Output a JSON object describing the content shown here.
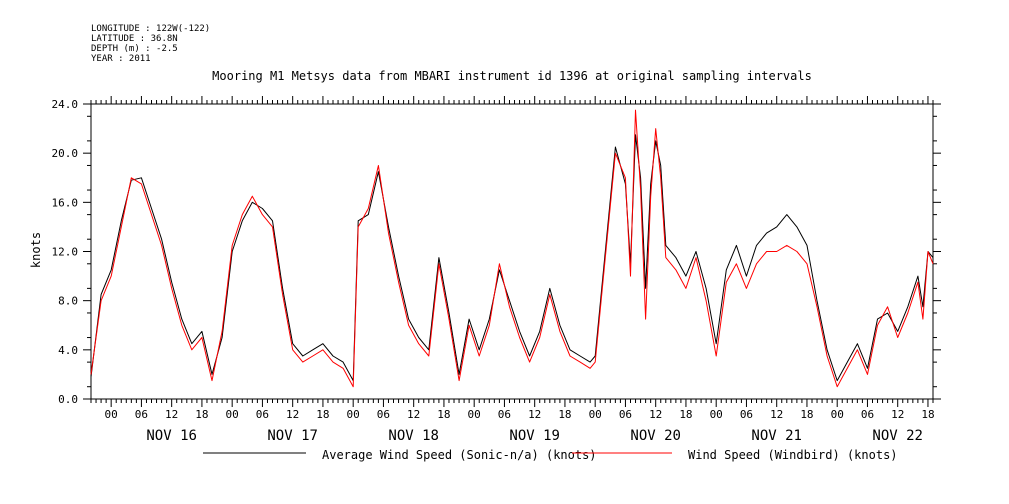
{
  "header": {
    "meta_lines": [
      "LONGITUDE : 122W(-122)",
      "LATITUDE : 36.8N",
      "DEPTH (m) : -2.5",
      "YEAR : 2011"
    ]
  },
  "chart_data": {
    "type": "line",
    "title": "Mooring M1 Metsys data from MBARI instrument id 1396 at original sampling intervals",
    "ylabel": "knots",
    "xlabel": "",
    "ylim": [
      0,
      24
    ],
    "y_ticks": [
      "0.0",
      "4.0",
      "8.0",
      "12.0",
      "16.0",
      "20.0",
      "24.0"
    ],
    "x_range_hours": [
      "2011-11-15 20:00",
      "2011-11-22 19:00"
    ],
    "x_hour_ticks": [
      "00",
      "06",
      "12",
      "18",
      "00",
      "06",
      "12",
      "18",
      "00",
      "06",
      "12",
      "18",
      "00",
      "06",
      "12",
      "18",
      "00",
      "06",
      "12",
      "18",
      "00",
      "06",
      "12",
      "18",
      "00",
      "06",
      "12",
      "18"
    ],
    "x_day_labels": [
      "NOV 16",
      "NOV 17",
      "NOV 18",
      "NOV 19",
      "NOV 20",
      "NOV 21",
      "NOV 22"
    ],
    "grid": false,
    "legend_position": "bottom",
    "series": [
      {
        "name": "Average Wind Speed (Sonic-n/a) (knots)",
        "color": "#000000",
        "points": [
          [
            "2011-11-15 20:00",
            1.8
          ],
          [
            "2011-11-15 22:00",
            8.5
          ],
          [
            "2011-11-16 00:00",
            10.5
          ],
          [
            "2011-11-16 02:00",
            14.5
          ],
          [
            "2011-11-16 04:00",
            17.8
          ],
          [
            "2011-11-16 06:00",
            18.0
          ],
          [
            "2011-11-16 08:00",
            15.5
          ],
          [
            "2011-11-16 10:00",
            13.0
          ],
          [
            "2011-11-16 12:00",
            9.5
          ],
          [
            "2011-11-16 14:00",
            6.5
          ],
          [
            "2011-11-16 16:00",
            4.5
          ],
          [
            "2011-11-16 18:00",
            5.5
          ],
          [
            "2011-11-16 20:00",
            2.0
          ],
          [
            "2011-11-16 22:00",
            5.0
          ],
          [
            "2011-11-17 00:00",
            12.0
          ],
          [
            "2011-11-17 02:00",
            14.5
          ],
          [
            "2011-11-17 04:00",
            16.0
          ],
          [
            "2011-11-17 06:00",
            15.5
          ],
          [
            "2011-11-17 08:00",
            14.5
          ],
          [
            "2011-11-17 10:00",
            9.0
          ],
          [
            "2011-11-17 12:00",
            4.5
          ],
          [
            "2011-11-17 14:00",
            3.5
          ],
          [
            "2011-11-17 16:00",
            4.0
          ],
          [
            "2011-11-17 18:00",
            4.5
          ],
          [
            "2011-11-17 20:00",
            3.5
          ],
          [
            "2011-11-17 22:00",
            3.0
          ],
          [
            "2011-11-18 00:00",
            1.5
          ],
          [
            "2011-11-18 01:00",
            14.5
          ],
          [
            "2011-11-18 03:00",
            15.0
          ],
          [
            "2011-11-18 05:00",
            18.5
          ],
          [
            "2011-11-18 07:00",
            14.0
          ],
          [
            "2011-11-18 09:00",
            10.0
          ],
          [
            "2011-11-18 11:00",
            6.5
          ],
          [
            "2011-11-18 13:00",
            5.0
          ],
          [
            "2011-11-18 15:00",
            4.0
          ],
          [
            "2011-11-18 17:00",
            11.5
          ],
          [
            "2011-11-18 19:00",
            7.0
          ],
          [
            "2011-11-18 21:00",
            2.0
          ],
          [
            "2011-11-18 23:00",
            6.5
          ],
          [
            "2011-11-19 01:00",
            4.0
          ],
          [
            "2011-11-19 03:00",
            6.5
          ],
          [
            "2011-11-19 05:00",
            10.5
          ],
          [
            "2011-11-19 07:00",
            8.0
          ],
          [
            "2011-11-19 09:00",
            5.5
          ],
          [
            "2011-11-19 11:00",
            3.5
          ],
          [
            "2011-11-19 13:00",
            5.5
          ],
          [
            "2011-11-19 15:00",
            9.0
          ],
          [
            "2011-11-19 17:00",
            6.0
          ],
          [
            "2011-11-19 19:00",
            4.0
          ],
          [
            "2011-11-19 21:00",
            3.5
          ],
          [
            "2011-11-19 23:00",
            3.0
          ],
          [
            "2011-11-20 00:00",
            3.5
          ],
          [
            "2011-11-20 02:00",
            12.0
          ],
          [
            "2011-11-20 04:00",
            20.5
          ],
          [
            "2011-11-20 06:00",
            17.5
          ],
          [
            "2011-11-20 07:00",
            11.0
          ],
          [
            "2011-11-20 08:00",
            21.5
          ],
          [
            "2011-11-20 09:00",
            18.0
          ],
          [
            "2011-11-20 10:00",
            9.0
          ],
          [
            "2011-11-20 11:00",
            17.5
          ],
          [
            "2011-11-20 12:00",
            21.0
          ],
          [
            "2011-11-20 13:00",
            19.0
          ],
          [
            "2011-11-20 14:00",
            12.5
          ],
          [
            "2011-11-20 16:00",
            11.5
          ],
          [
            "2011-11-20 18:00",
            10.0
          ],
          [
            "2011-11-20 20:00",
            12.0
          ],
          [
            "2011-11-20 22:00",
            9.0
          ],
          [
            "2011-11-21 00:00",
            4.5
          ],
          [
            "2011-11-21 02:00",
            10.5
          ],
          [
            "2011-11-21 04:00",
            12.5
          ],
          [
            "2011-11-21 06:00",
            10.0
          ],
          [
            "2011-11-21 08:00",
            12.5
          ],
          [
            "2011-11-21 10:00",
            13.5
          ],
          [
            "2011-11-21 12:00",
            14.0
          ],
          [
            "2011-11-21 14:00",
            15.0
          ],
          [
            "2011-11-21 16:00",
            14.0
          ],
          [
            "2011-11-21 18:00",
            12.5
          ],
          [
            "2011-11-21 20:00",
            8.0
          ],
          [
            "2011-11-21 22:00",
            4.0
          ],
          [
            "2011-11-22 00:00",
            1.5
          ],
          [
            "2011-11-22 02:00",
            3.0
          ],
          [
            "2011-11-22 04:00",
            4.5
          ],
          [
            "2011-11-22 06:00",
            2.5
          ],
          [
            "2011-11-22 08:00",
            6.5
          ],
          [
            "2011-11-22 10:00",
            7.0
          ],
          [
            "2011-11-22 12:00",
            5.5
          ],
          [
            "2011-11-22 14:00",
            7.5
          ],
          [
            "2011-11-22 16:00",
            10.0
          ],
          [
            "2011-11-22 17:00",
            7.5
          ],
          [
            "2011-11-22 18:00",
            12.0
          ],
          [
            "2011-11-22 19:00",
            11.5
          ]
        ]
      },
      {
        "name": "Wind Speed (Windbird) (knots)",
        "color": "#ff0000",
        "points": [
          [
            "2011-11-15 20:00",
            2.0
          ],
          [
            "2011-11-15 22:00",
            8.0
          ],
          [
            "2011-11-16 00:00",
            10.0
          ],
          [
            "2011-11-16 02:00",
            14.0
          ],
          [
            "2011-11-16 04:00",
            18.0
          ],
          [
            "2011-11-16 06:00",
            17.5
          ],
          [
            "2011-11-16 08:00",
            15.0
          ],
          [
            "2011-11-16 10:00",
            12.5
          ],
          [
            "2011-11-16 12:00",
            9.0
          ],
          [
            "2011-11-16 14:00",
            6.0
          ],
          [
            "2011-11-16 16:00",
            4.0
          ],
          [
            "2011-11-16 18:00",
            5.0
          ],
          [
            "2011-11-16 20:00",
            1.5
          ],
          [
            "2011-11-16 22:00",
            5.5
          ],
          [
            "2011-11-17 00:00",
            12.5
          ],
          [
            "2011-11-17 02:00",
            15.0
          ],
          [
            "2011-11-17 04:00",
            16.5
          ],
          [
            "2011-11-17 06:00",
            15.0
          ],
          [
            "2011-11-17 08:00",
            14.0
          ],
          [
            "2011-11-17 10:00",
            8.5
          ],
          [
            "2011-11-17 12:00",
            4.0
          ],
          [
            "2011-11-17 14:00",
            3.0
          ],
          [
            "2011-11-17 16:00",
            3.5
          ],
          [
            "2011-11-17 18:00",
            4.0
          ],
          [
            "2011-11-17 20:00",
            3.0
          ],
          [
            "2011-11-17 22:00",
            2.5
          ],
          [
            "2011-11-18 00:00",
            1.0
          ],
          [
            "2011-11-18 01:00",
            14.0
          ],
          [
            "2011-11-18 03:00",
            15.5
          ],
          [
            "2011-11-18 05:00",
            19.0
          ],
          [
            "2011-11-18 07:00",
            13.5
          ],
          [
            "2011-11-18 09:00",
            9.5
          ],
          [
            "2011-11-18 11:00",
            6.0
          ],
          [
            "2011-11-18 13:00",
            4.5
          ],
          [
            "2011-11-18 15:00",
            3.5
          ],
          [
            "2011-11-18 17:00",
            11.0
          ],
          [
            "2011-11-18 19:00",
            6.5
          ],
          [
            "2011-11-18 21:00",
            1.5
          ],
          [
            "2011-11-18 23:00",
            6.0
          ],
          [
            "2011-11-19 01:00",
            3.5
          ],
          [
            "2011-11-19 03:00",
            6.0
          ],
          [
            "2011-11-19 05:00",
            11.0
          ],
          [
            "2011-11-19 07:00",
            7.5
          ],
          [
            "2011-11-19 09:00",
            5.0
          ],
          [
            "2011-11-19 11:00",
            3.0
          ],
          [
            "2011-11-19 13:00",
            5.0
          ],
          [
            "2011-11-19 15:00",
            8.5
          ],
          [
            "2011-11-19 17:00",
            5.5
          ],
          [
            "2011-11-19 19:00",
            3.5
          ],
          [
            "2011-11-19 21:00",
            3.0
          ],
          [
            "2011-11-19 23:00",
            2.5
          ],
          [
            "2011-11-20 00:00",
            3.0
          ],
          [
            "2011-11-20 02:00",
            11.5
          ],
          [
            "2011-11-20 04:00",
            20.0
          ],
          [
            "2011-11-20 06:00",
            18.0
          ],
          [
            "2011-11-20 07:00",
            10.0
          ],
          [
            "2011-11-20 08:00",
            23.5
          ],
          [
            "2011-11-20 09:00",
            17.0
          ],
          [
            "2011-11-20 10:00",
            6.5
          ],
          [
            "2011-11-20 11:00",
            16.5
          ],
          [
            "2011-11-20 12:00",
            22.0
          ],
          [
            "2011-11-20 13:00",
            18.0
          ],
          [
            "2011-11-20 14:00",
            11.5
          ],
          [
            "2011-11-20 16:00",
            10.5
          ],
          [
            "2011-11-20 18:00",
            9.0
          ],
          [
            "2011-11-20 20:00",
            11.5
          ],
          [
            "2011-11-20 22:00",
            8.0
          ],
          [
            "2011-11-21 00:00",
            3.5
          ],
          [
            "2011-11-21 02:00",
            9.5
          ],
          [
            "2011-11-21 04:00",
            11.0
          ],
          [
            "2011-11-21 06:00",
            9.0
          ],
          [
            "2011-11-21 08:00",
            11.0
          ],
          [
            "2011-11-21 10:00",
            12.0
          ],
          [
            "2011-11-21 12:00",
            12.0
          ],
          [
            "2011-11-21 14:00",
            12.5
          ],
          [
            "2011-11-21 16:00",
            12.0
          ],
          [
            "2011-11-21 18:00",
            11.0
          ],
          [
            "2011-11-21 20:00",
            7.5
          ],
          [
            "2011-11-21 22:00",
            3.5
          ],
          [
            "2011-11-22 00:00",
            1.0
          ],
          [
            "2011-11-22 02:00",
            2.5
          ],
          [
            "2011-11-22 04:00",
            4.0
          ],
          [
            "2011-11-22 06:00",
            2.0
          ],
          [
            "2011-11-22 08:00",
            6.0
          ],
          [
            "2011-11-22 10:00",
            7.5
          ],
          [
            "2011-11-22 12:00",
            5.0
          ],
          [
            "2011-11-22 14:00",
            7.0
          ],
          [
            "2011-11-22 16:00",
            9.5
          ],
          [
            "2011-11-22 17:00",
            6.5
          ],
          [
            "2011-11-22 18:00",
            12.0
          ],
          [
            "2011-11-22 19:00",
            11.0
          ]
        ]
      }
    ]
  }
}
